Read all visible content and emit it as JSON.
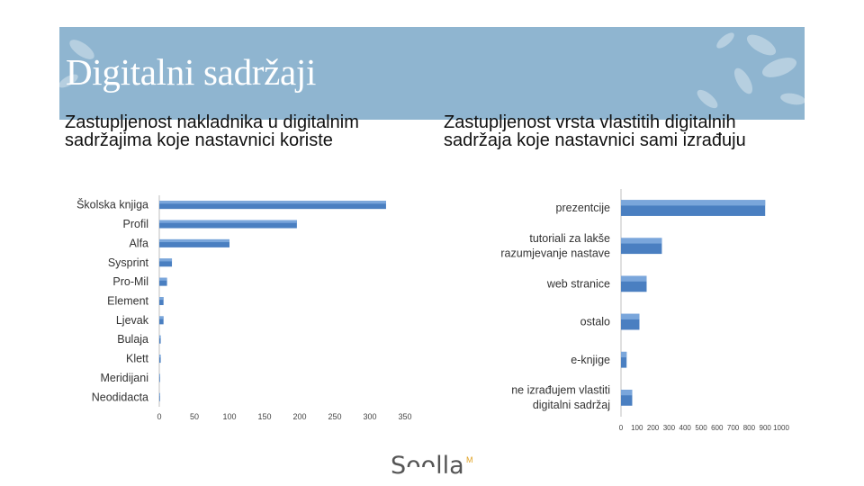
{
  "slide": {
    "title": "Digitalni sadržaji",
    "left_heading": "Zastupljenost nakladnika u digitalnim sadržajima koje nastavnici koriste",
    "right_heading": "Zastupljenost vrsta vlastitih digitalnih sadržaja koje nastavnici sami izrađuju",
    "logo": {
      "text": "Sᴖᴖlla",
      "mark": "M"
    },
    "colors": {
      "banner": "#8fb5d0",
      "bar": "#4a7fc1",
      "bar_light": "#7aa6db"
    }
  },
  "chart_data": [
    {
      "type": "bar",
      "orientation": "horizontal",
      "title": "Zastupljenost nakladnika u digitalnim sadržajima koje nastavnici koriste",
      "categories": [
        "Školska knjiga",
        "Profil",
        "Alfa",
        "Sysprint",
        "Pro-Mil",
        "Element",
        "Ljevak",
        "Bulaja",
        "Klett",
        "Meridijani",
        "Neodidacta"
      ],
      "values": [
        323,
        196,
        100,
        18,
        11,
        6,
        6,
        2,
        2,
        0,
        0
      ],
      "xticks": [
        "0",
        "50",
        "100",
        "150",
        "200",
        "250",
        "300",
        "350"
      ],
      "xlim": [
        0,
        350
      ],
      "grid": false,
      "legend": "none"
    },
    {
      "type": "bar",
      "orientation": "horizontal",
      "title": "Zastupljenost vrsta vlastitih digitalnih sadržaja koje nastavnici sami izrađuju",
      "categories": [
        "prezentcije",
        "tutoriali za lakše razumjevanje nastave",
        "web stranice",
        "ostalo",
        "e-knjige",
        "ne izrađujem vlastiti digitalni sadržaj"
      ],
      "values": [
        900,
        255,
        160,
        115,
        35,
        70
      ],
      "xticks": [
        "0",
        "100",
        "200",
        "300",
        "400",
        "500",
        "600",
        "700",
        "800",
        "900",
        "1000"
      ],
      "xlim": [
        0,
        1000
      ],
      "grid": false,
      "legend": "none"
    }
  ]
}
